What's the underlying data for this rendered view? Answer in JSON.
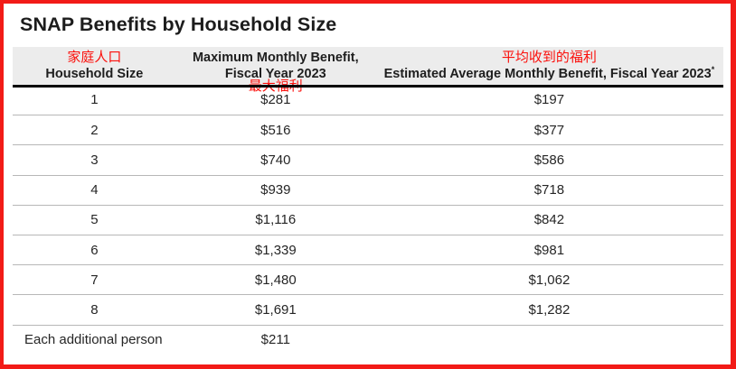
{
  "title": "SNAP Benefits by Household Size",
  "colors": {
    "frame_red": "#f21b17",
    "annotation_red": "#fb0f0b",
    "header_background": "#ececec",
    "header_rule": "#000000",
    "row_separator": "#b7b7b7",
    "text": "#262626"
  },
  "table": {
    "columns": [
      {
        "annotation_zh": "家庭人口",
        "label": "Household Size"
      },
      {
        "label_line1": "Maximum Monthly Benefit,",
        "label_line2": "Fiscal Year 2023",
        "annotation_zh": "最大福利"
      },
      {
        "annotation_zh": "平均收到的福利",
        "label": "Estimated Average Monthly Benefit, Fiscal Year 2023",
        "superscript": "*"
      }
    ],
    "rows": [
      {
        "size": "1",
        "max": "$281",
        "avg": "$197"
      },
      {
        "size": "2",
        "max": "$516",
        "avg": "$377"
      },
      {
        "size": "3",
        "max": "$740",
        "avg": "$586"
      },
      {
        "size": "4",
        "max": "$939",
        "avg": "$718"
      },
      {
        "size": "5",
        "max": "$1,116",
        "avg": "$842"
      },
      {
        "size": "6",
        "max": "$1,339",
        "avg": "$981"
      },
      {
        "size": "7",
        "max": "$1,480",
        "avg": "$1,062"
      },
      {
        "size": "8",
        "max": "$1,691",
        "avg": "$1,282"
      },
      {
        "size": "Each additional person",
        "max": "$211",
        "avg": ""
      }
    ]
  },
  "chart_data": {
    "type": "table",
    "title": "SNAP Benefits by Household Size",
    "columns": [
      "Household Size",
      "Maximum Monthly Benefit, Fiscal Year 2023",
      "Estimated Average Monthly Benefit, Fiscal Year 2023*"
    ],
    "rows": [
      [
        "1",
        281,
        197
      ],
      [
        "2",
        516,
        377
      ],
      [
        "3",
        740,
        586
      ],
      [
        "4",
        939,
        718
      ],
      [
        "5",
        1116,
        842
      ],
      [
        "6",
        1339,
        981
      ],
      [
        "7",
        1480,
        1062
      ],
      [
        "8",
        1691,
        1282
      ],
      [
        "Each additional person",
        211,
        null
      ]
    ],
    "annotations_zh": [
      "家庭人口",
      "最大福利",
      "平均收到的福利"
    ],
    "units": "USD per month"
  }
}
